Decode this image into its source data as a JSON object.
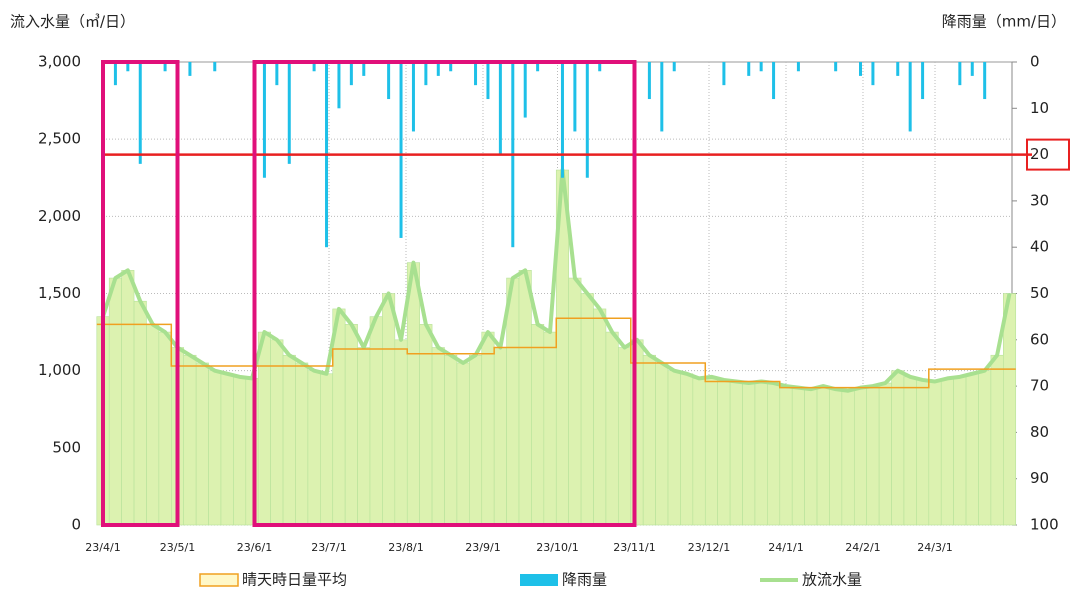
{
  "chart_data": {
    "type": "line",
    "y_label": "流入水量（㎥/日）",
    "y2_label": "降雨量（mm/日）",
    "xlim": [
      0,
      366
    ],
    "xticks": [
      {
        "value": 0,
        "label": "23/4/1"
      },
      {
        "value": 30,
        "label": "23/5/1"
      },
      {
        "value": 61,
        "label": "23/6/1"
      },
      {
        "value": 91,
        "label": "23/7/1"
      },
      {
        "value": 122,
        "label": "23/8/1"
      },
      {
        "value": 153,
        "label": "23/9/1"
      },
      {
        "value": 183,
        "label": "23/10/1"
      },
      {
        "value": 214,
        "label": "23/11/1"
      },
      {
        "value": 244,
        "label": "23/12/1"
      },
      {
        "value": 275,
        "label": "24/1/1"
      },
      {
        "value": 306,
        "label": "24/2/1"
      },
      {
        "value": 335,
        "label": "24/3/1"
      }
    ],
    "ylim": [
      0,
      3000
    ],
    "yticks": [
      0,
      500,
      {
        "value": 1000,
        "label": "1,000"
      },
      {
        "value": 1500,
        "label": "1,500"
      },
      {
        "value": 2000,
        "label": "2,000"
      },
      {
        "value": 2500,
        "label": "2,500"
      },
      {
        "value": 3000,
        "label": "3,000"
      }
    ],
    "y2lim": [
      0,
      100
    ],
    "y2_inverted": true,
    "y2ticks": [
      0,
      10,
      20,
      30,
      40,
      50,
      60,
      70,
      80,
      90,
      100
    ],
    "grid": true,
    "threshold": 2400,
    "threshold_color": "#e82020",
    "highlight_label": 20,
    "highlights": [
      [
        0,
        30
      ],
      [
        61,
        214
      ]
    ],
    "highlight_color": "#e0107a",
    "x": [
      0,
      5,
      10,
      15,
      20,
      25,
      30,
      35,
      40,
      45,
      50,
      55,
      60,
      65,
      70,
      75,
      80,
      85,
      90,
      95,
      100,
      105,
      110,
      115,
      120,
      125,
      130,
      135,
      140,
      145,
      150,
      155,
      160,
      165,
      170,
      175,
      180,
      185,
      190,
      195,
      200,
      205,
      210,
      215,
      220,
      225,
      230,
      235,
      240,
      245,
      250,
      255,
      260,
      265,
      270,
      275,
      280,
      285,
      290,
      295,
      300,
      305,
      310,
      315,
      320,
      325,
      330,
      335,
      340,
      345,
      350,
      355,
      360,
      365
    ],
    "series": [
      {
        "name": "晴天時日量平均",
        "color": "#f0a020",
        "kind": "step",
        "values": [
          1300,
          1300,
          1300,
          1300,
          1300,
          1300,
          1030,
          1030,
          1030,
          1030,
          1030,
          1030,
          1030,
          1030,
          1030,
          1030,
          1030,
          1030,
          1030,
          1140,
          1140,
          1140,
          1140,
          1140,
          1140,
          1110,
          1110,
          1110,
          1110,
          1110,
          1110,
          1110,
          1150,
          1150,
          1150,
          1150,
          1150,
          1340,
          1340,
          1340,
          1340,
          1340,
          1340,
          1050,
          1050,
          1050,
          1050,
          1050,
          1050,
          930,
          930,
          930,
          930,
          930,
          930,
          890,
          890,
          890,
          890,
          890,
          890,
          890,
          890,
          890,
          890,
          890,
          890,
          1010,
          1010,
          1010,
          1010,
          1010,
          1010,
          1010
        ]
      },
      {
        "name": "降雨量",
        "color": "#1ec0e8",
        "kind": "rain",
        "axis": "y2",
        "values": [
          10,
          5,
          2,
          22,
          0,
          2,
          0,
          3,
          0,
          2,
          0,
          0,
          0,
          25,
          5,
          22,
          0,
          2,
          40,
          10,
          5,
          3,
          0,
          8,
          38,
          15,
          5,
          3,
          2,
          0,
          5,
          8,
          20,
          40,
          12,
          2,
          0,
          25,
          15,
          25,
          2,
          0,
          0,
          0,
          8,
          15,
          2,
          0,
          0,
          0,
          5,
          0,
          3,
          2,
          8,
          0,
          2,
          0,
          0,
          2,
          0,
          3,
          5,
          0,
          3,
          15,
          8,
          0,
          0,
          5,
          3,
          8,
          0,
          0
        ]
      },
      {
        "name": "放流水量",
        "color": "#a8e090",
        "kind": "flow",
        "values": [
          1350,
          1600,
          1650,
          1450,
          1300,
          1250,
          1150,
          1100,
          1050,
          1000,
          980,
          960,
          950,
          1250,
          1200,
          1100,
          1050,
          1000,
          980,
          1400,
          1300,
          1150,
          1350,
          1500,
          1200,
          1700,
          1300,
          1150,
          1100,
          1050,
          1100,
          1250,
          1150,
          1600,
          1650,
          1300,
          1250,
          2300,
          1600,
          1500,
          1400,
          1250,
          1150,
          1200,
          1100,
          1050,
          1000,
          980,
          950,
          960,
          940,
          930,
          920,
          930,
          920,
          900,
          890,
          880,
          900,
          880,
          870,
          890,
          900,
          920,
          1000,
          960,
          940,
          930,
          950,
          960,
          980,
          1000,
          1100,
          1500
        ]
      }
    ]
  }
}
